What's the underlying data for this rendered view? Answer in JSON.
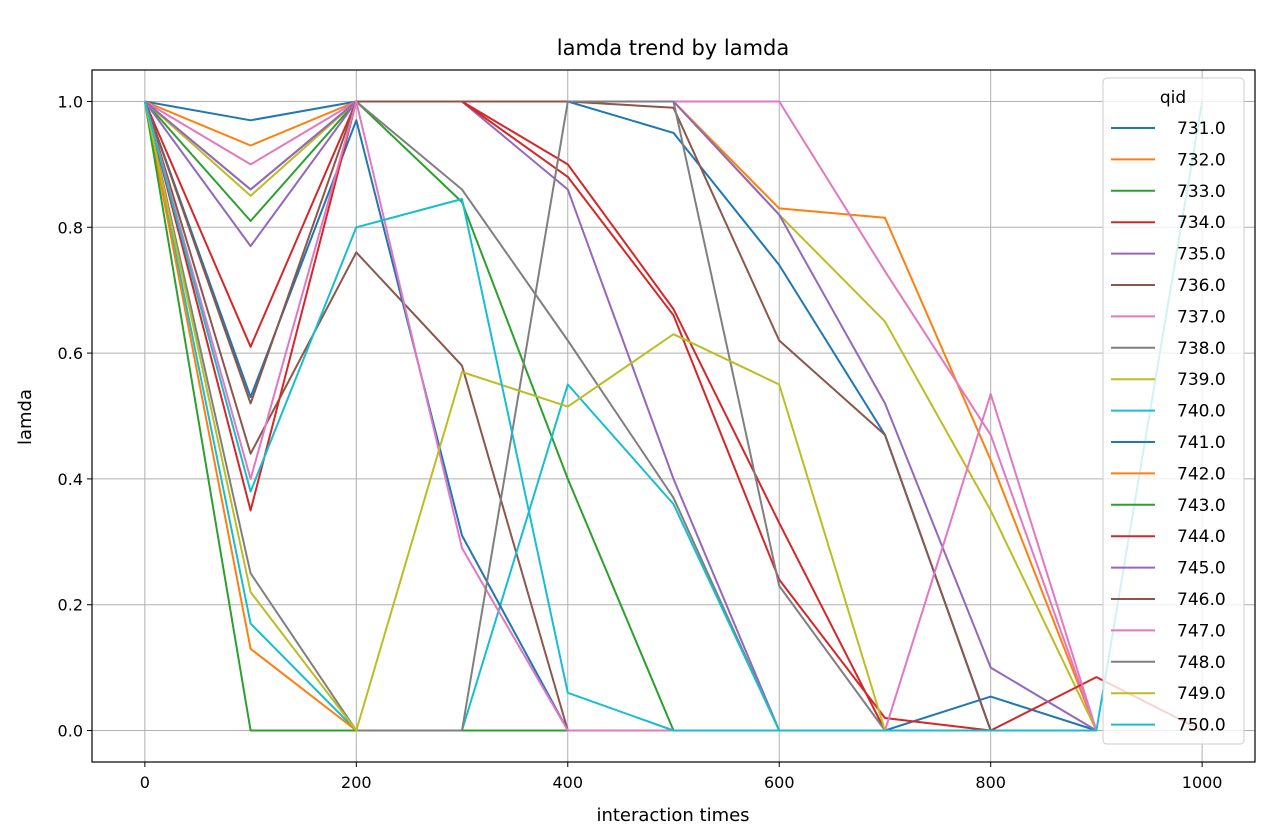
{
  "chart_data": {
    "type": "line",
    "title": "lamda trend by lamda",
    "xlabel": "interaction times",
    "ylabel": "lamda",
    "xlim": [
      -50,
      1050
    ],
    "ylim": [
      -0.05,
      1.05
    ],
    "xticks": [
      0,
      200,
      400,
      600,
      800,
      1000
    ],
    "yticks": [
      0.0,
      0.2,
      0.4,
      0.6,
      0.8,
      1.0
    ],
    "xtick_labels": [
      "0",
      "200",
      "400",
      "600",
      "800",
      "1000"
    ],
    "ytick_labels": [
      "0.0",
      "0.2",
      "0.4",
      "0.6",
      "0.8",
      "1.0"
    ],
    "grid": true,
    "legend": {
      "title": "qid",
      "placement": "upper-right"
    },
    "x": [
      0,
      100,
      200,
      300,
      400,
      500,
      600,
      700,
      800,
      900,
      1000
    ],
    "series": [
      {
        "name": "731.0",
        "color": "#1f77b4",
        "values": [
          1.0,
          0.97,
          1.0,
          1.0,
          1.0,
          0.95,
          0.74,
          0.47,
          0.0,
          0.0,
          null
        ]
      },
      {
        "name": "732.0",
        "color": "#ff7f0e",
        "values": [
          1.0,
          0.93,
          1.0,
          1.0,
          1.0,
          1.0,
          0.83,
          0.815,
          0.43,
          0.0,
          null
        ]
      },
      {
        "name": "733.0",
        "color": "#2ca02c",
        "values": [
          1.0,
          0.81,
          1.0,
          0.84,
          0.4,
          0.0,
          0.0,
          0.0,
          0.0,
          0.0,
          null
        ]
      },
      {
        "name": "734.0",
        "color": "#d62728",
        "values": [
          1.0,
          0.61,
          1.0,
          1.0,
          0.9,
          0.67,
          0.33,
          0.0,
          0.0,
          0.0,
          null
        ]
      },
      {
        "name": "735.0",
        "color": "#9467bd",
        "values": [
          1.0,
          0.77,
          1.0,
          1.0,
          0.86,
          0.4,
          0.0,
          0.0,
          0.0,
          0.0,
          null
        ]
      },
      {
        "name": "736.0",
        "color": "#8c564b",
        "values": [
          1.0,
          0.44,
          0.76,
          0.58,
          0.0,
          0.0,
          0.0,
          0.0,
          0.0,
          0.0,
          null
        ]
      },
      {
        "name": "737.0",
        "color": "#e377c2",
        "values": [
          1.0,
          0.9,
          1.0,
          1.0,
          1.0,
          1.0,
          1.0,
          0.73,
          0.47,
          0.0,
          null
        ]
      },
      {
        "name": "738.0",
        "color": "#7f7f7f",
        "values": [
          1.0,
          0.86,
          1.0,
          0.86,
          0.62,
          0.37,
          0.0,
          0.0,
          0.0,
          0.0,
          null
        ]
      },
      {
        "name": "739.0",
        "color": "#bcbd22",
        "values": [
          1.0,
          0.85,
          1.0,
          1.0,
          1.0,
          1.0,
          0.82,
          0.65,
          0.35,
          0.0,
          null
        ]
      },
      {
        "name": "740.0",
        "color": "#17becf",
        "values": [
          1.0,
          0.17,
          0.0,
          0.0,
          0.55,
          0.36,
          0.0,
          0.0,
          0.0,
          0.0,
          null
        ]
      },
      {
        "name": "741.0",
        "color": "#1f77b4",
        "values": [
          1.0,
          0.53,
          0.97,
          0.31,
          0.0,
          0.0,
          0.0,
          0.0,
          0.054,
          0.0,
          null
        ]
      },
      {
        "name": "742.0",
        "color": "#ff7f0e",
        "values": [
          1.0,
          0.13,
          0.0,
          0.0,
          0.0,
          0.0,
          0.0,
          0.0,
          0.0,
          0.0,
          null
        ]
      },
      {
        "name": "743.0",
        "color": "#2ca02c",
        "values": [
          1.0,
          0.0,
          0.0,
          0.0,
          0.0,
          0.0,
          0.0,
          0.0,
          0.0,
          0.0,
          null
        ]
      },
      {
        "name": "744.0",
        "color": "#d62728",
        "values": [
          1.0,
          0.35,
          1.0,
          1.0,
          0.88,
          0.66,
          0.24,
          0.02,
          0.0,
          0.085,
          0.0
        ]
      },
      {
        "name": "745.0",
        "color": "#9467bd",
        "values": [
          1.0,
          0.86,
          1.0,
          1.0,
          1.0,
          1.0,
          0.82,
          0.52,
          0.1,
          0.0,
          null
        ]
      },
      {
        "name": "746.0",
        "color": "#8c564b",
        "values": [
          1.0,
          0.52,
          1.0,
          1.0,
          1.0,
          0.99,
          0.62,
          0.47,
          0.0,
          0.0,
          null
        ]
      },
      {
        "name": "747.0",
        "color": "#e377c2",
        "values": [
          1.0,
          0.4,
          1.0,
          0.29,
          0.0,
          0.0,
          0.0,
          0.0,
          0.535,
          0.0,
          null
        ]
      },
      {
        "name": "748.0",
        "color": "#7f7f7f",
        "values": [
          1.0,
          0.25,
          0.0,
          0.0,
          1.0,
          1.0,
          0.23,
          0.0,
          0.0,
          0.0,
          null
        ]
      },
      {
        "name": "749.0",
        "color": "#bcbd22",
        "values": [
          1.0,
          0.22,
          0.0,
          0.57,
          0.515,
          0.63,
          0.55,
          0.0,
          0.0,
          0.0,
          null
        ]
      },
      {
        "name": "750.0",
        "color": "#17becf",
        "values": [
          1.0,
          0.38,
          0.8,
          0.845,
          0.06,
          0.0,
          0.0,
          0.0,
          0.0,
          0.0,
          1.0
        ]
      }
    ]
  }
}
